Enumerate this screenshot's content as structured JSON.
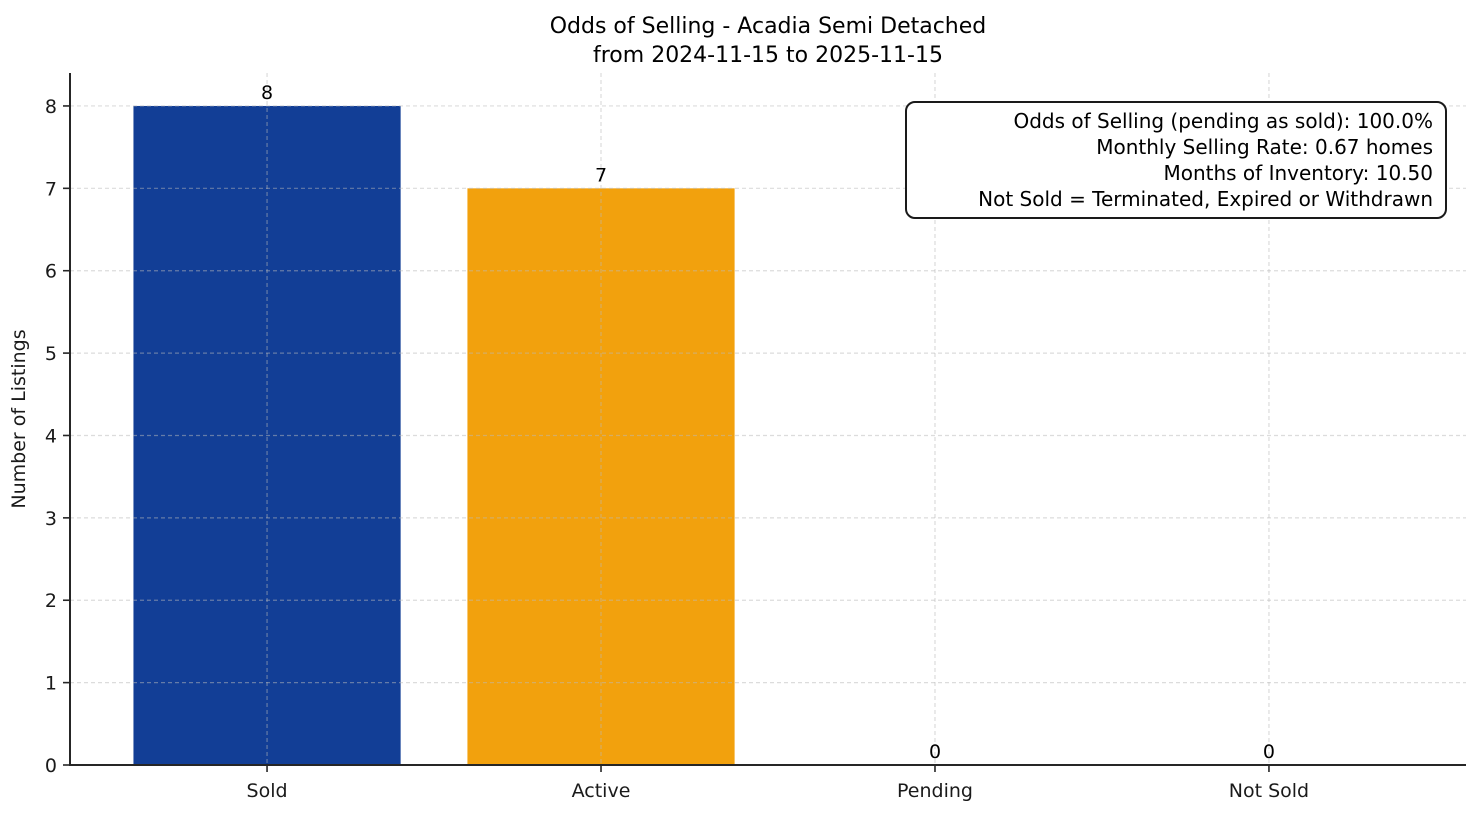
{
  "chart_data": {
    "type": "bar",
    "title": "Odds of Selling - Acadia Semi Detached",
    "subtitle": "from 2024-11-15 to 2025-11-15",
    "xlabel": "",
    "ylabel": "Number of Listings",
    "categories": [
      "Sold",
      "Active",
      "Pending",
      "Not Sold"
    ],
    "values": [
      8,
      7,
      0,
      0
    ],
    "bar_labels": [
      "8",
      "7",
      "0",
      "0"
    ],
    "bar_colors": [
      "#123e96",
      "#f2a10d",
      "#123e96",
      "#f2a10d"
    ],
    "ylim": [
      0,
      8.4
    ],
    "yticks": [
      0,
      1,
      2,
      3,
      4,
      5,
      6,
      7,
      8
    ],
    "grid": true,
    "grid_style": "dashed",
    "legend_position": "none"
  },
  "annotation": {
    "lines": [
      "Odds of Selling (pending as sold): 100.0%",
      "Monthly Selling Rate: 0.67 homes",
      "Months of Inventory: 10.50",
      "Not Sold = Terminated, Expired or Withdrawn"
    ]
  },
  "colors": {
    "axis": "#262626",
    "grid": "#b9b9b9",
    "background": "#ffffff",
    "sold_bar": "#123e96",
    "active_bar": "#f2a10d"
  }
}
